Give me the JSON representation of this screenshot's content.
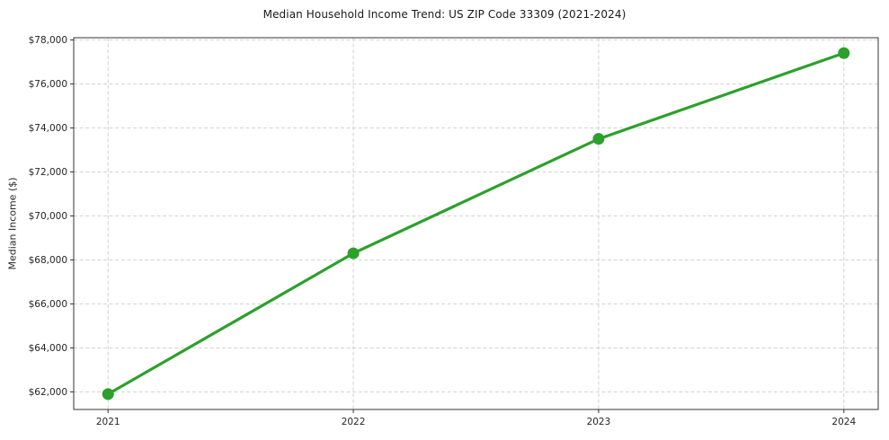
{
  "chart_data": {
    "type": "line",
    "title": "Median Household Income Trend: US ZIP Code 33309 (2021-2024)",
    "xlabel": "",
    "ylabel": "Median Income ($)",
    "x": [
      2021,
      2022,
      2023,
      2024
    ],
    "x_labels": [
      "2021",
      "2022",
      "2023",
      "2024"
    ],
    "series": [
      {
        "values": [
          61900,
          68300,
          73500,
          77400
        ],
        "color": "#2ca02c",
        "marker": "circle"
      }
    ],
    "xlim": [
      2020.86,
      2024.14
    ],
    "ylim": [
      61200,
      78100
    ],
    "yticks": [
      62000,
      64000,
      66000,
      68000,
      70000,
      72000,
      74000,
      76000,
      78000
    ],
    "ytick_labels": [
      "$62,000",
      "$64,000",
      "$66,000",
      "$68,000",
      "$70,000",
      "$72,000",
      "$74,000",
      "$76,000",
      "$78,000"
    ],
    "grid": true,
    "grid_style": "dashed",
    "legend": "none",
    "colors": {
      "grid": "#cccccc",
      "spine": "#333333",
      "tick_text": "#262626",
      "background": "#ffffff"
    }
  }
}
